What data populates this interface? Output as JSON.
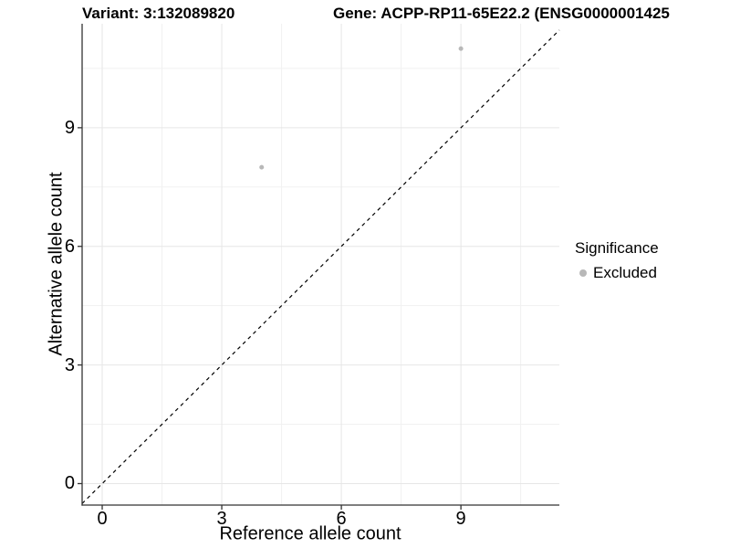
{
  "title": {
    "variant": "Variant: 3:132089820",
    "gene": "Gene: ACPP-RP11-65E22.2 (ENSG0000001425"
  },
  "axes": {
    "x_label": "Reference allele count",
    "y_label": "Alternative allele count"
  },
  "legend": {
    "title": "Significance",
    "items": [
      {
        "label": "Excluded",
        "color": "#b8b8b8"
      }
    ]
  },
  "chart_data": {
    "type": "scatter",
    "title": "Variant: 3:132089820 | Gene: ACPP-RP11-65E22.2 (ENSG0000001425",
    "xlabel": "Reference allele count",
    "ylabel": "Alternative allele count",
    "series": [
      {
        "name": "Excluded",
        "color": "#b8b8b8",
        "points": [
          {
            "x": 4,
            "y": 8
          },
          {
            "x": 9,
            "y": 11
          }
        ]
      }
    ],
    "x_ticks": [
      0,
      3,
      6,
      9
    ],
    "y_ticks": [
      0,
      3,
      6,
      9
    ],
    "x_minor_ticks": [
      1.5,
      4.5,
      7.5,
      10.5
    ],
    "y_minor_ticks": [
      1.5,
      4.5,
      7.5,
      10.5
    ],
    "xlim": [
      -0.504,
      11.47
    ],
    "ylim": [
      -0.543,
      11.63
    ],
    "reference_line": {
      "kind": "identity",
      "slope": 1,
      "intercept": 0,
      "style": "dashed",
      "color": "#000000"
    },
    "grid": true,
    "legend_position": "right",
    "legend_title": "Significance",
    "point_radius": 2.5,
    "colors": {
      "grid_major": "#e6e6e6",
      "grid_minor": "#f1f1f1",
      "axis_line": "#333333",
      "tick_mark": "#333333"
    }
  }
}
